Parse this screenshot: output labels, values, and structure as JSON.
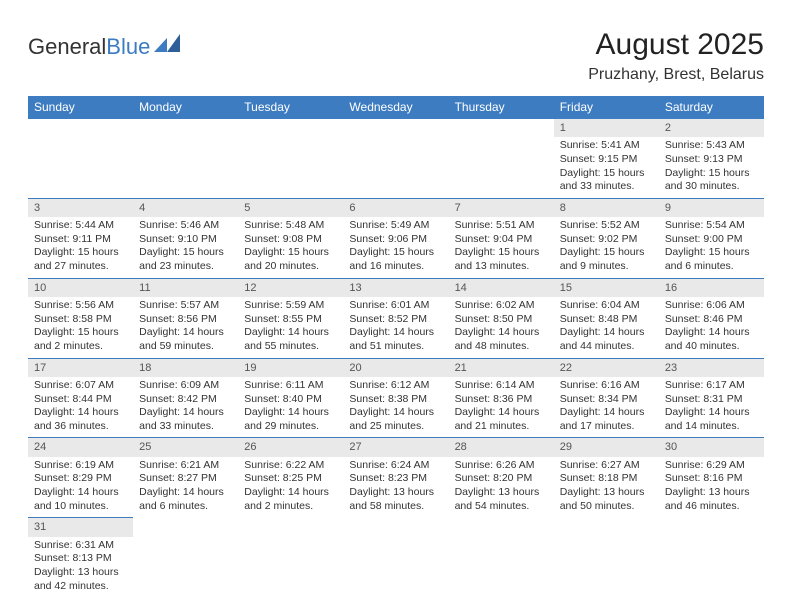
{
  "header": {
    "logo_text_1": "General",
    "logo_text_2": "Blue",
    "title": "August 2025",
    "subtitle": "Pruzhany, Brest, Belarus"
  },
  "colors": {
    "header_bg": "#3d7cc0",
    "header_text": "#ffffff",
    "daynum_bg": "#e9e9e9",
    "border": "#3d7cc0",
    "text": "#333333",
    "background": "#ffffff"
  },
  "daynames": [
    "Sunday",
    "Monday",
    "Tuesday",
    "Wednesday",
    "Thursday",
    "Friday",
    "Saturday"
  ],
  "weeks": [
    [
      null,
      null,
      null,
      null,
      null,
      {
        "num": "1",
        "sunrise": "Sunrise: 5:41 AM",
        "sunset": "Sunset: 9:15 PM",
        "daylight": "Daylight: 15 hours and 33 minutes."
      },
      {
        "num": "2",
        "sunrise": "Sunrise: 5:43 AM",
        "sunset": "Sunset: 9:13 PM",
        "daylight": "Daylight: 15 hours and 30 minutes."
      }
    ],
    [
      {
        "num": "3",
        "sunrise": "Sunrise: 5:44 AM",
        "sunset": "Sunset: 9:11 PM",
        "daylight": "Daylight: 15 hours and 27 minutes."
      },
      {
        "num": "4",
        "sunrise": "Sunrise: 5:46 AM",
        "sunset": "Sunset: 9:10 PM",
        "daylight": "Daylight: 15 hours and 23 minutes."
      },
      {
        "num": "5",
        "sunrise": "Sunrise: 5:48 AM",
        "sunset": "Sunset: 9:08 PM",
        "daylight": "Daylight: 15 hours and 20 minutes."
      },
      {
        "num": "6",
        "sunrise": "Sunrise: 5:49 AM",
        "sunset": "Sunset: 9:06 PM",
        "daylight": "Daylight: 15 hours and 16 minutes."
      },
      {
        "num": "7",
        "sunrise": "Sunrise: 5:51 AM",
        "sunset": "Sunset: 9:04 PM",
        "daylight": "Daylight: 15 hours and 13 minutes."
      },
      {
        "num": "8",
        "sunrise": "Sunrise: 5:52 AM",
        "sunset": "Sunset: 9:02 PM",
        "daylight": "Daylight: 15 hours and 9 minutes."
      },
      {
        "num": "9",
        "sunrise": "Sunrise: 5:54 AM",
        "sunset": "Sunset: 9:00 PM",
        "daylight": "Daylight: 15 hours and 6 minutes."
      }
    ],
    [
      {
        "num": "10",
        "sunrise": "Sunrise: 5:56 AM",
        "sunset": "Sunset: 8:58 PM",
        "daylight": "Daylight: 15 hours and 2 minutes."
      },
      {
        "num": "11",
        "sunrise": "Sunrise: 5:57 AM",
        "sunset": "Sunset: 8:56 PM",
        "daylight": "Daylight: 14 hours and 59 minutes."
      },
      {
        "num": "12",
        "sunrise": "Sunrise: 5:59 AM",
        "sunset": "Sunset: 8:55 PM",
        "daylight": "Daylight: 14 hours and 55 minutes."
      },
      {
        "num": "13",
        "sunrise": "Sunrise: 6:01 AM",
        "sunset": "Sunset: 8:52 PM",
        "daylight": "Daylight: 14 hours and 51 minutes."
      },
      {
        "num": "14",
        "sunrise": "Sunrise: 6:02 AM",
        "sunset": "Sunset: 8:50 PM",
        "daylight": "Daylight: 14 hours and 48 minutes."
      },
      {
        "num": "15",
        "sunrise": "Sunrise: 6:04 AM",
        "sunset": "Sunset: 8:48 PM",
        "daylight": "Daylight: 14 hours and 44 minutes."
      },
      {
        "num": "16",
        "sunrise": "Sunrise: 6:06 AM",
        "sunset": "Sunset: 8:46 PM",
        "daylight": "Daylight: 14 hours and 40 minutes."
      }
    ],
    [
      {
        "num": "17",
        "sunrise": "Sunrise: 6:07 AM",
        "sunset": "Sunset: 8:44 PM",
        "daylight": "Daylight: 14 hours and 36 minutes."
      },
      {
        "num": "18",
        "sunrise": "Sunrise: 6:09 AM",
        "sunset": "Sunset: 8:42 PM",
        "daylight": "Daylight: 14 hours and 33 minutes."
      },
      {
        "num": "19",
        "sunrise": "Sunrise: 6:11 AM",
        "sunset": "Sunset: 8:40 PM",
        "daylight": "Daylight: 14 hours and 29 minutes."
      },
      {
        "num": "20",
        "sunrise": "Sunrise: 6:12 AM",
        "sunset": "Sunset: 8:38 PM",
        "daylight": "Daylight: 14 hours and 25 minutes."
      },
      {
        "num": "21",
        "sunrise": "Sunrise: 6:14 AM",
        "sunset": "Sunset: 8:36 PM",
        "daylight": "Daylight: 14 hours and 21 minutes."
      },
      {
        "num": "22",
        "sunrise": "Sunrise: 6:16 AM",
        "sunset": "Sunset: 8:34 PM",
        "daylight": "Daylight: 14 hours and 17 minutes."
      },
      {
        "num": "23",
        "sunrise": "Sunrise: 6:17 AM",
        "sunset": "Sunset: 8:31 PM",
        "daylight": "Daylight: 14 hours and 14 minutes."
      }
    ],
    [
      {
        "num": "24",
        "sunrise": "Sunrise: 6:19 AM",
        "sunset": "Sunset: 8:29 PM",
        "daylight": "Daylight: 14 hours and 10 minutes."
      },
      {
        "num": "25",
        "sunrise": "Sunrise: 6:21 AM",
        "sunset": "Sunset: 8:27 PM",
        "daylight": "Daylight: 14 hours and 6 minutes."
      },
      {
        "num": "26",
        "sunrise": "Sunrise: 6:22 AM",
        "sunset": "Sunset: 8:25 PM",
        "daylight": "Daylight: 14 hours and 2 minutes."
      },
      {
        "num": "27",
        "sunrise": "Sunrise: 6:24 AM",
        "sunset": "Sunset: 8:23 PM",
        "daylight": "Daylight: 13 hours and 58 minutes."
      },
      {
        "num": "28",
        "sunrise": "Sunrise: 6:26 AM",
        "sunset": "Sunset: 8:20 PM",
        "daylight": "Daylight: 13 hours and 54 minutes."
      },
      {
        "num": "29",
        "sunrise": "Sunrise: 6:27 AM",
        "sunset": "Sunset: 8:18 PM",
        "daylight": "Daylight: 13 hours and 50 minutes."
      },
      {
        "num": "30",
        "sunrise": "Sunrise: 6:29 AM",
        "sunset": "Sunset: 8:16 PM",
        "daylight": "Daylight: 13 hours and 46 minutes."
      }
    ],
    [
      {
        "num": "31",
        "sunrise": "Sunrise: 6:31 AM",
        "sunset": "Sunset: 8:13 PM",
        "daylight": "Daylight: 13 hours and 42 minutes."
      },
      null,
      null,
      null,
      null,
      null,
      null
    ]
  ]
}
